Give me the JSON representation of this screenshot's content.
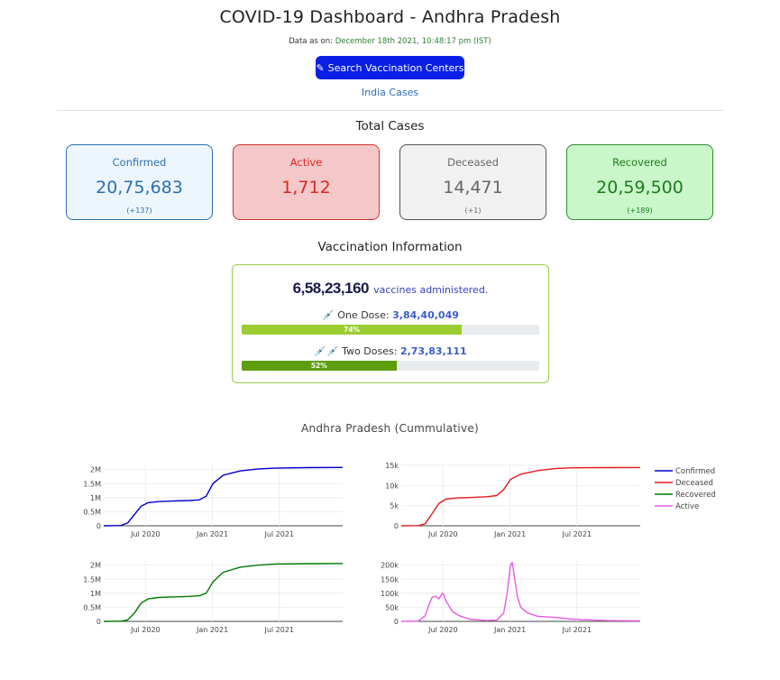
{
  "header": {
    "title": "COVID-19 Dashboard - Andhra Pradesh",
    "asof_prefix": "Data as on:",
    "asof_value": "December 18th 2021, 10:48:17 pm (IST)",
    "search_button_label": "Search Vaccination Centers",
    "india_link": "India Cases"
  },
  "total_cases": {
    "title": "Total Cases",
    "cards": [
      {
        "label": "Confirmed",
        "value": "20,75,683",
        "delta": "(+137)",
        "color": "#2a6fb5",
        "bg": "#eef6fd",
        "border": "#2a6fb5"
      },
      {
        "label": "Active",
        "value": "1,712",
        "delta": "",
        "color": "#e02424",
        "bg": "#f4c8c8",
        "border": "#d32f2f"
      },
      {
        "label": "Deceased",
        "value": "14,471",
        "delta": "(+1)",
        "color": "#666666",
        "bg": "#f1f1f1",
        "border": "#555555"
      },
      {
        "label": "Recovered",
        "value": "20,59,500",
        "delta": "(+189)",
        "color": "#1b7d1b",
        "bg": "#c9f7c9",
        "border": "#2e8b2e"
      }
    ]
  },
  "vaccination": {
    "title": "Vaccination Information",
    "total": "6,58,23,160",
    "total_suffix": "vaccines administered.",
    "one_dose_label": "One Dose:",
    "one_dose_value": "3,84,40,049",
    "one_dose_percent_label": "74%",
    "one_dose_fraction": 0.74,
    "two_dose_label": "Two Doses:",
    "two_dose_value": "2,73,83,111",
    "two_dose_percent_label": "52%",
    "two_dose_fraction": 0.52,
    "one_dose_color": "#9acd32",
    "two_dose_color": "#5c9e0a"
  },
  "charts": {
    "title": "Andhra Pradesh (Cummulative)",
    "legend": [
      {
        "name": "Confirmed",
        "color": "#0000cd"
      },
      {
        "name": "Deceased",
        "color": "#e31a1c"
      },
      {
        "name": "Recovered",
        "color": "#007a00"
      },
      {
        "name": "Active",
        "color": "#e65be6"
      }
    ]
  },
  "chart_data": [
    {
      "type": "line",
      "series": [
        {
          "name": "Confirmed",
          "values": [
            [
              0,
              0
            ],
            [
              0.05,
              0.01
            ],
            [
              0.07,
              0.1
            ],
            [
              0.09,
              0.4
            ],
            [
              0.11,
              0.7
            ],
            [
              0.13,
              0.82
            ],
            [
              0.16,
              0.86
            ],
            [
              0.2,
              0.88
            ],
            [
              0.25,
              0.9
            ],
            [
              0.28,
              0.92
            ],
            [
              0.3,
              1.05
            ],
            [
              0.32,
              1.5
            ],
            [
              0.35,
              1.8
            ],
            [
              0.4,
              1.95
            ],
            [
              0.45,
              2.02
            ],
            [
              0.5,
              2.05
            ],
            [
              0.6,
              2.07
            ],
            [
              0.7,
              2.075
            ]
          ]
        }
      ],
      "x_ticks": [
        "Jul 2020",
        "Jan 2021",
        "Jul 2021"
      ],
      "y_ticks": [
        "0",
        "0.5M",
        "1M",
        "1.5M",
        "2M"
      ],
      "ylim": [
        0,
        2.15
      ],
      "color": "#0000cd"
    },
    {
      "type": "line",
      "series": [
        {
          "name": "Deceased",
          "values": [
            [
              0,
              0
            ],
            [
              0.05,
              0.05
            ],
            [
              0.07,
              0.5
            ],
            [
              0.09,
              3
            ],
            [
              0.11,
              5.5
            ],
            [
              0.13,
              6.6
            ],
            [
              0.16,
              6.9
            ],
            [
              0.2,
              7.0
            ],
            [
              0.25,
              7.2
            ],
            [
              0.28,
              7.5
            ],
            [
              0.3,
              9
            ],
            [
              0.32,
              11.5
            ],
            [
              0.35,
              12.8
            ],
            [
              0.4,
              13.7
            ],
            [
              0.45,
              14.2
            ],
            [
              0.5,
              14.4
            ],
            [
              0.6,
              14.45
            ],
            [
              0.7,
              14.47
            ]
          ]
        }
      ],
      "x_ticks": [
        "Jul 2020",
        "Jan 2021",
        "Jul 2021"
      ],
      "y_ticks": [
        "0",
        "5k",
        "10k",
        "15k"
      ],
      "ylim": [
        0,
        15
      ],
      "color": "#e31a1c"
    },
    {
      "type": "line",
      "series": [
        {
          "name": "Recovered",
          "values": [
            [
              0,
              0
            ],
            [
              0.05,
              0.005
            ],
            [
              0.07,
              0.05
            ],
            [
              0.09,
              0.3
            ],
            [
              0.11,
              0.65
            ],
            [
              0.13,
              0.8
            ],
            [
              0.16,
              0.85
            ],
            [
              0.2,
              0.87
            ],
            [
              0.25,
              0.89
            ],
            [
              0.28,
              0.91
            ],
            [
              0.3,
              1.0
            ],
            [
              0.32,
              1.4
            ],
            [
              0.35,
              1.75
            ],
            [
              0.4,
              1.93
            ],
            [
              0.45,
              2.0
            ],
            [
              0.5,
              2.04
            ],
            [
              0.6,
              2.055
            ],
            [
              0.7,
              2.06
            ]
          ]
        }
      ],
      "x_ticks": [
        "Jul 2020",
        "Jan 2021",
        "Jul 2021"
      ],
      "y_ticks": [
        "0",
        "0.5M",
        "1M",
        "1.5M",
        "2M"
      ],
      "ylim": [
        0,
        2.15
      ],
      "color": "#007a00"
    },
    {
      "type": "line",
      "series": [
        {
          "name": "Active",
          "values": [
            [
              0,
              0
            ],
            [
              0.05,
              1
            ],
            [
              0.07,
              20
            ],
            [
              0.08,
              55
            ],
            [
              0.09,
              85
            ],
            [
              0.1,
              90
            ],
            [
              0.11,
              80
            ],
            [
              0.12,
              100
            ],
            [
              0.125,
              95
            ],
            [
              0.13,
              75
            ],
            [
              0.14,
              55
            ],
            [
              0.15,
              35
            ],
            [
              0.17,
              20
            ],
            [
              0.2,
              8
            ],
            [
              0.25,
              3
            ],
            [
              0.28,
              5
            ],
            [
              0.3,
              30
            ],
            [
              0.31,
              100
            ],
            [
              0.32,
              200
            ],
            [
              0.325,
              210
            ],
            [
              0.33,
              170
            ],
            [
              0.34,
              90
            ],
            [
              0.35,
              50
            ],
            [
              0.37,
              30
            ],
            [
              0.4,
              18
            ],
            [
              0.45,
              14
            ],
            [
              0.5,
              8
            ],
            [
              0.6,
              3
            ],
            [
              0.7,
              1.7
            ]
          ]
        }
      ],
      "x_ticks": [
        "Jul 2020",
        "Jan 2021",
        "Jul 2021"
      ],
      "y_ticks": [
        "0",
        "50k",
        "100k",
        "150k",
        "200k"
      ],
      "ylim": [
        0,
        215
      ],
      "color": "#e65be6"
    }
  ]
}
